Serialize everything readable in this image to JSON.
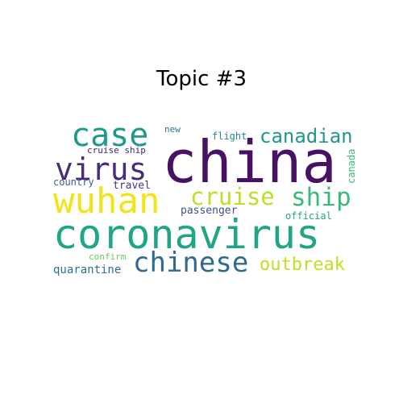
{
  "figure": {
    "title": "Topic #3"
  },
  "word_cloud": {
    "words": [
      {
        "text": "china",
        "color": "#471164"
      },
      {
        "text": "coronavirus",
        "color": "#21a585"
      },
      {
        "text": "wuhan",
        "color": "#f0e51c"
      },
      {
        "text": "case",
        "color": "#1f9a8a"
      },
      {
        "text": "virus",
        "color": "#472c7a"
      },
      {
        "text": "chinese",
        "color": "#306a8e"
      },
      {
        "text": "cruise",
        "color": "#bcdf27"
      },
      {
        "text": "ship",
        "color": "#3ab97a"
      },
      {
        "text": "canadian",
        "color": "#22978d"
      },
      {
        "text": "outbreak",
        "color": "#c2df23"
      },
      {
        "text": "quarantine",
        "color": "#2d718e"
      },
      {
        "text": "passenger",
        "color": "#3b518b"
      },
      {
        "text": "travel",
        "color": "#453a83"
      },
      {
        "text": "country",
        "color": "#365c8d"
      },
      {
        "text": "cruise ship",
        "color": "#482475"
      },
      {
        "text": "official",
        "color": "#21a685"
      },
      {
        "text": "canada",
        "color": "#3dbc74"
      },
      {
        "text": "flight",
        "color": "#238a8d"
      },
      {
        "text": "new",
        "color": "#2a788e"
      },
      {
        "text": "confirm",
        "color": "#65cb5e"
      }
    ]
  }
}
